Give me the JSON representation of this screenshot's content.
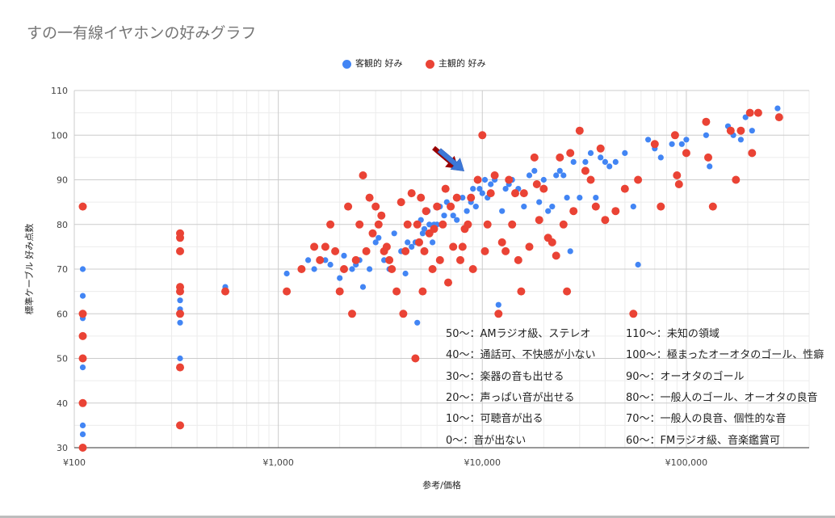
{
  "chart_data": {
    "type": "scatter",
    "title": "すの一有線イヤホンの好みグラフ",
    "xlabel": "参考/価格",
    "ylabel": "標準ケーブル 好み点数",
    "x_scale": "log",
    "xlim": [
      100,
      400000
    ],
    "ylim": [
      30,
      110
    ],
    "x_ticks": [
      100,
      1000,
      10000,
      100000
    ],
    "x_tick_labels": [
      "¥100",
      "¥1,000",
      "¥10,000",
      "¥100,000"
    ],
    "y_ticks": [
      30,
      40,
      50,
      60,
      70,
      80,
      90,
      100,
      110
    ],
    "grid": true,
    "legend_position": "top",
    "series": [
      {
        "name": "客観的 好み",
        "color": "#4285f4",
        "points": [
          [
            110,
            70
          ],
          [
            110,
            64
          ],
          [
            110,
            59
          ],
          [
            110,
            48
          ],
          [
            110,
            35
          ],
          [
            110,
            33
          ],
          [
            110,
            30
          ],
          [
            330,
            65
          ],
          [
            330,
            63
          ],
          [
            330,
            61
          ],
          [
            330,
            58
          ],
          [
            330,
            50
          ],
          [
            330,
            35
          ],
          [
            550,
            66
          ],
          [
            1100,
            69
          ],
          [
            1400,
            72
          ],
          [
            1500,
            70
          ],
          [
            1700,
            72
          ],
          [
            1800,
            71
          ],
          [
            2000,
            68
          ],
          [
            2100,
            73
          ],
          [
            2300,
            70
          ],
          [
            2400,
            71
          ],
          [
            2500,
            72
          ],
          [
            2600,
            66
          ],
          [
            2700,
            74
          ],
          [
            2800,
            70
          ],
          [
            3000,
            76
          ],
          [
            3100,
            77
          ],
          [
            3300,
            72
          ],
          [
            3500,
            70
          ],
          [
            3700,
            78
          ],
          [
            4000,
            74
          ],
          [
            4200,
            69
          ],
          [
            4300,
            76
          ],
          [
            4500,
            75
          ],
          [
            4700,
            76
          ],
          [
            4800,
            58
          ],
          [
            5000,
            81
          ],
          [
            5100,
            78
          ],
          [
            5200,
            79
          ],
          [
            5400,
            83
          ],
          [
            5500,
            80
          ],
          [
            5700,
            76
          ],
          [
            5800,
            80
          ],
          [
            6000,
            80
          ],
          [
            6200,
            84
          ],
          [
            6500,
            82
          ],
          [
            6700,
            85
          ],
          [
            7000,
            84
          ],
          [
            7200,
            82
          ],
          [
            7500,
            81
          ],
          [
            8000,
            86
          ],
          [
            8400,
            83
          ],
          [
            8800,
            85
          ],
          [
            9000,
            88
          ],
          [
            9300,
            84
          ],
          [
            9700,
            88
          ],
          [
            10000,
            87
          ],
          [
            10300,
            90
          ],
          [
            10600,
            86
          ],
          [
            11000,
            89
          ],
          [
            11500,
            90
          ],
          [
            12000,
            62
          ],
          [
            12500,
            83
          ],
          [
            13000,
            88
          ],
          [
            13500,
            89
          ],
          [
            14000,
            90
          ],
          [
            15000,
            88
          ],
          [
            16000,
            84
          ],
          [
            17000,
            91
          ],
          [
            18000,
            92
          ],
          [
            19000,
            85
          ],
          [
            20000,
            90
          ],
          [
            21000,
            83
          ],
          [
            22000,
            84
          ],
          [
            23000,
            91
          ],
          [
            24000,
            92
          ],
          [
            25000,
            91
          ],
          [
            26000,
            86
          ],
          [
            27000,
            74
          ],
          [
            28000,
            94
          ],
          [
            30000,
            86
          ],
          [
            32000,
            94
          ],
          [
            34000,
            96
          ],
          [
            36000,
            86
          ],
          [
            38000,
            95
          ],
          [
            40000,
            94
          ],
          [
            42000,
            93
          ],
          [
            45000,
            94
          ],
          [
            50000,
            96
          ],
          [
            55000,
            84
          ],
          [
            58000,
            71
          ],
          [
            65000,
            99
          ],
          [
            70000,
            97
          ],
          [
            75000,
            95
          ],
          [
            85000,
            98
          ],
          [
            95000,
            98
          ],
          [
            100000,
            99
          ],
          [
            125000,
            100
          ],
          [
            130000,
            93
          ],
          [
            160000,
            102
          ],
          [
            170000,
            100
          ],
          [
            185000,
            99
          ],
          [
            195000,
            104
          ],
          [
            210000,
            101
          ],
          [
            280000,
            106
          ]
        ]
      },
      {
        "name": "主観的 好み",
        "color": "#ea4335",
        "points": [
          [
            110,
            84
          ],
          [
            110,
            60
          ],
          [
            110,
            55
          ],
          [
            110,
            50
          ],
          [
            110,
            40
          ],
          [
            110,
            30
          ],
          [
            330,
            78
          ],
          [
            330,
            77
          ],
          [
            330,
            74
          ],
          [
            330,
            66
          ],
          [
            330,
            65
          ],
          [
            330,
            60
          ],
          [
            330,
            48
          ],
          [
            330,
            35
          ],
          [
            550,
            65
          ],
          [
            1100,
            65
          ],
          [
            1300,
            70
          ],
          [
            1500,
            75
          ],
          [
            1600,
            72
          ],
          [
            1700,
            75
          ],
          [
            1800,
            80
          ],
          [
            1900,
            74
          ],
          [
            2000,
            65
          ],
          [
            2100,
            70
          ],
          [
            2200,
            84
          ],
          [
            2300,
            60
          ],
          [
            2400,
            72
          ],
          [
            2500,
            80
          ],
          [
            2600,
            91
          ],
          [
            2700,
            74
          ],
          [
            2800,
            86
          ],
          [
            2900,
            78
          ],
          [
            3000,
            84
          ],
          [
            3100,
            80
          ],
          [
            3200,
            82
          ],
          [
            3300,
            74
          ],
          [
            3400,
            75
          ],
          [
            3500,
            72
          ],
          [
            3600,
            70
          ],
          [
            3800,
            65
          ],
          [
            4000,
            85
          ],
          [
            4100,
            60
          ],
          [
            4200,
            74
          ],
          [
            4300,
            80
          ],
          [
            4500,
            87
          ],
          [
            4700,
            50
          ],
          [
            4800,
            80
          ],
          [
            4900,
            76
          ],
          [
            5000,
            86
          ],
          [
            5100,
            65
          ],
          [
            5200,
            74
          ],
          [
            5300,
            83
          ],
          [
            5500,
            78
          ],
          [
            5700,
            70
          ],
          [
            5800,
            79
          ],
          [
            6000,
            84
          ],
          [
            6200,
            72
          ],
          [
            6400,
            80
          ],
          [
            6600,
            88
          ],
          [
            6800,
            67
          ],
          [
            7000,
            84
          ],
          [
            7200,
            75
          ],
          [
            7500,
            86
          ],
          [
            7800,
            72
          ],
          [
            8000,
            75
          ],
          [
            8200,
            79
          ],
          [
            8500,
            80
          ],
          [
            8800,
            86
          ],
          [
            9000,
            70
          ],
          [
            9500,
            90
          ],
          [
            10000,
            100
          ],
          [
            10300,
            74
          ],
          [
            10600,
            80
          ],
          [
            11000,
            87
          ],
          [
            11500,
            91
          ],
          [
            12000,
            60
          ],
          [
            12500,
            76
          ],
          [
            13000,
            74
          ],
          [
            13500,
            90
          ],
          [
            14000,
            80
          ],
          [
            14500,
            87
          ],
          [
            15000,
            72
          ],
          [
            15500,
            65
          ],
          [
            16000,
            87
          ],
          [
            17000,
            75
          ],
          [
            18000,
            95
          ],
          [
            18500,
            89
          ],
          [
            19000,
            81
          ],
          [
            20000,
            88
          ],
          [
            21000,
            77
          ],
          [
            22000,
            76
          ],
          [
            23000,
            73
          ],
          [
            24000,
            95
          ],
          [
            25000,
            80
          ],
          [
            26000,
            65
          ],
          [
            27000,
            96
          ],
          [
            28000,
            83
          ],
          [
            30000,
            101
          ],
          [
            32000,
            92
          ],
          [
            34000,
            90
          ],
          [
            36000,
            84
          ],
          [
            38000,
            97
          ],
          [
            40000,
            81
          ],
          [
            45000,
            83
          ],
          [
            50000,
            88
          ],
          [
            55000,
            60
          ],
          [
            58000,
            90
          ],
          [
            70000,
            98
          ],
          [
            75000,
            84
          ],
          [
            88000,
            100
          ],
          [
            90000,
            91
          ],
          [
            92000,
            89
          ],
          [
            100000,
            96
          ],
          [
            125000,
            103
          ],
          [
            128000,
            95
          ],
          [
            135000,
            84
          ],
          [
            165000,
            101
          ],
          [
            175000,
            90
          ],
          [
            185000,
            101
          ],
          [
            205000,
            105
          ],
          [
            210000,
            96
          ],
          [
            225000,
            105
          ],
          [
            285000,
            104
          ]
        ]
      }
    ],
    "annotations_left": [
      "50～：AMラジオ級、ステレオ",
      "40～：通話可、不快感が小ない",
      "30～：楽器の音も出せる",
      "20～：声っぱい音が出せる",
      "10～：可聴音が出る",
      "0～：音が出ない"
    ],
    "annotations_right": [
      "110～：未知の領域",
      "100～：極まったオーオタのゴール、性癖",
      "90～：オーオタのゴール",
      "80～：一般人のゴール、オーオタの良音",
      "70～：一般人の良音、個性的な音",
      "60～：FMラジオ級、音楽鑑賞可"
    ],
    "arrow_color": "#3c78d8",
    "arrow_shadow_color": "#990000"
  }
}
